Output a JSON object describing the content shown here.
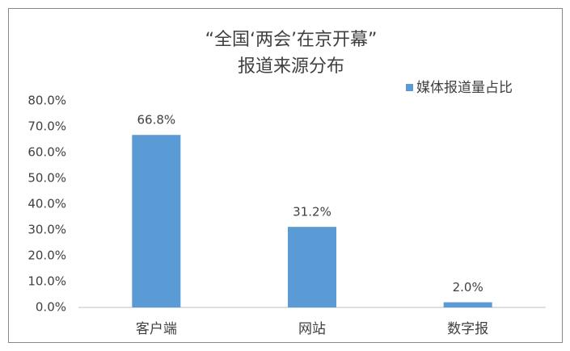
{
  "chart_data": {
    "type": "bar",
    "title": "“全国‘两会’在京开幕”",
    "subtitle": "报道来源分布",
    "categories": [
      "客户端",
      "网站",
      "数字报"
    ],
    "series": [
      {
        "name": "媒体报道量占比",
        "color": "#5b9bd5",
        "values": [
          66.8,
          31.2,
          2.0
        ],
        "value_labels": [
          "66.8%",
          "31.2%",
          "2.0%"
        ]
      }
    ],
    "ylim": [
      0,
      80
    ],
    "yticks": [
      {
        "value": 0,
        "label": "0.0%"
      },
      {
        "value": 10,
        "label": "10.0%"
      },
      {
        "value": 20,
        "label": "20.0%"
      },
      {
        "value": 30,
        "label": "30.0%"
      },
      {
        "value": 40,
        "label": "40.0%"
      },
      {
        "value": 50,
        "label": "50.0%"
      },
      {
        "value": 60,
        "label": "60.0%"
      },
      {
        "value": 70,
        "label": "70.0%"
      },
      {
        "value": 80,
        "label": "80.0%"
      }
    ],
    "grid": false,
    "legend": "top-right"
  }
}
